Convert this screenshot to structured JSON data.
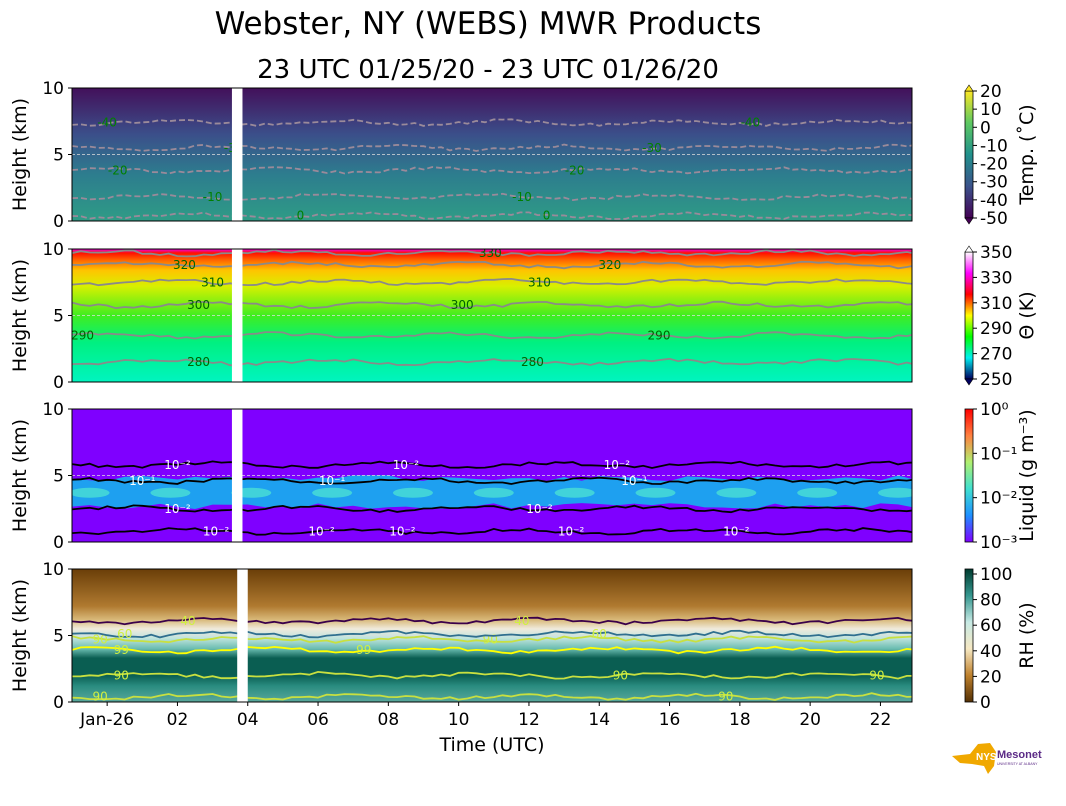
{
  "title": "Webster, NY (WEBS) MWR Products",
  "subtitle": "23 UTC 01/25/20 - 23 UTC 01/26/20",
  "logo_text": "NYS Mesonet",
  "logo_subtext": "UNIVERSITY AT ALBANY",
  "chart_data": {
    "type": "heatmap",
    "xlabel": "Time (UTC)",
    "x_range_hours_utc": [
      "23 UTC 01/25/20",
      "23 UTC 01/26/20"
    ],
    "xticks": [
      "Jan-26",
      "02",
      "04",
      "06",
      "08",
      "10",
      "12",
      "14",
      "16",
      "18",
      "20",
      "22"
    ],
    "xtick_hours": [
      1,
      3,
      5,
      7,
      9,
      11,
      13,
      15,
      17,
      19,
      21,
      23
    ],
    "missing_data_hours": [
      4.55,
      4.85
    ],
    "panels": [
      {
        "name": "temperature",
        "ylabel": "Height (km)",
        "ylim": [
          0,
          10
        ],
        "yticks": [
          "0",
          "5",
          "10"
        ],
        "colorbar_label": "Temp. (˚C)",
        "colorbar_ticks": [
          "20",
          "10",
          "0",
          "-10",
          "-20",
          "-30",
          "-40",
          "-50"
        ],
        "colors": [
          "#440154",
          "#3b528b",
          "#21918c",
          "#5ec962",
          "#fde725"
        ],
        "bg": [
          [
            "0",
            "#2f9c86"
          ],
          [
            "0.35",
            "#2d7d8e"
          ],
          [
            "0.65",
            "#3b4f8a"
          ],
          [
            "1",
            "#43105a"
          ]
        ],
        "contours": [
          {
            "level": "0",
            "height_km": 0.4,
            "style": "dashed",
            "color": "#9a8a9a",
            "labels": [
              6.5,
              13.5
            ]
          },
          {
            "level": "-10",
            "height_km": 1.8,
            "style": "dashed",
            "color": "#9a8a9a",
            "labels": [
              4,
              12.8
            ]
          },
          {
            "level": "-20",
            "height_km": 3.8,
            "style": "dashed",
            "color": "#9a8a9a",
            "labels": [
              1.3,
              14.3
            ]
          },
          {
            "level": "-30",
            "height_km": 5.5,
            "style": "dashed",
            "color": "#9a8a9a",
            "labels": [
              4.6,
              16.5
            ]
          },
          {
            "level": "-40",
            "height_km": 7.4,
            "style": "dashed",
            "color": "#9a8a9a",
            "labels": [
              1,
              19.3
            ]
          }
        ],
        "label_color": "#008000"
      },
      {
        "name": "theta",
        "ylabel": "Height (km)",
        "ylim": [
          0,
          10
        ],
        "yticks": [
          "0",
          "5",
          "10"
        ],
        "colorbar_label": "Θ (K)",
        "colorbar_ticks": [
          "350",
          "330",
          "310",
          "290",
          "270",
          "250"
        ],
        "colors": [
          "#000060",
          "#00f0f0",
          "#00ff00",
          "#ffff00",
          "#ff0000",
          "#ff00ff",
          "#ffffff"
        ],
        "bg": [
          [
            "0",
            "#00f5c0"
          ],
          [
            "0.3",
            "#00f080"
          ],
          [
            "0.5",
            "#40ee20"
          ],
          [
            "0.72",
            "#d8f000"
          ],
          [
            "0.84",
            "#ffc400"
          ],
          [
            "0.92",
            "#ff6000"
          ],
          [
            "0.97",
            "#ff1000"
          ],
          [
            "1",
            "#ee00ee"
          ]
        ],
        "contours": [
          {
            "level": "280",
            "height_km": 1.5,
            "style": "solid",
            "color": "#8a8a8a",
            "labels": [
              3.6,
              13.1
            ]
          },
          {
            "level": "290",
            "height_km": 3.5,
            "style": "solid",
            "color": "#8a8a8a",
            "labels": [
              0.3,
              16.7
            ]
          },
          {
            "level": "300",
            "height_km": 5.8,
            "style": "solid",
            "color": "#8a8a8a",
            "labels": [
              3.6,
              11.1
            ]
          },
          {
            "level": "310",
            "height_km": 7.5,
            "style": "solid",
            "color": "#8a8a8a",
            "labels": [
              4,
              13.3
            ]
          },
          {
            "level": "320",
            "height_km": 8.8,
            "style": "solid",
            "color": "#8a8a8a",
            "labels": [
              3.2,
              15.3
            ]
          },
          {
            "level": "330",
            "height_km": 9.7,
            "style": "solid",
            "color": "#8a8a8a",
            "labels": [
              11.9
            ]
          }
        ],
        "label_color": "#006400"
      },
      {
        "name": "liquid",
        "ylabel": "Height (km)",
        "ylim": [
          0,
          10
        ],
        "yticks": [
          "0",
          "5",
          "10"
        ],
        "colorbar_label": "Liquid (g m⁻³)",
        "colorbar_scale": "log",
        "colorbar_ticks": [
          "10⁰",
          "10⁻¹",
          "10⁻²",
          "10⁻³"
        ],
        "colors": [
          "#7f00ff",
          "#1e90ff",
          "#40e0d0",
          "#b0f070",
          "#ff8040",
          "#ff0000"
        ],
        "bg": [
          [
            "0",
            "#7f00ff"
          ],
          [
            "1",
            "#7f00ff"
          ]
        ],
        "layer_km": [
          2.7,
          4.8
        ],
        "contours": [
          {
            "level": "10⁻²",
            "height_km": 5.8,
            "style": "solid",
            "color": "#000",
            "labels": [
              3,
              9.5,
              15.5
            ]
          },
          {
            "level": "10⁻¹",
            "height_km": 4.6,
            "style": "solid",
            "color": "#000",
            "labels": [
              2,
              7.4,
              16
            ]
          },
          {
            "level": "10⁻²",
            "height_km": 2.5,
            "style": "solid",
            "color": "#000",
            "labels": [
              3,
              13.3
            ]
          },
          {
            "level": "10⁻²",
            "height_km": 0.8,
            "style": "solid",
            "color": "#000",
            "labels": [
              4.1,
              7.1,
              9.4,
              14.2,
              18.9
            ]
          }
        ],
        "label_color": "#ffffff"
      },
      {
        "name": "rh",
        "ylabel": "Height (km)",
        "ylim": [
          0,
          10
        ],
        "yticks": [
          "0",
          "5",
          "10"
        ],
        "colorbar_label": "RH (%)",
        "colorbar_ticks": [
          "100",
          "80",
          "60",
          "40",
          "20",
          "0"
        ],
        "colors": [
          "#543005",
          "#bf812d",
          "#f6e8c3",
          "#c7eae5",
          "#35978f",
          "#003c30"
        ],
        "bg": [
          [
            "0",
            "#5aa89c"
          ],
          [
            "0.12",
            "#2a8c80"
          ],
          [
            "0.2",
            "#0a5e52"
          ],
          [
            "0.33",
            "#0a5e52"
          ],
          [
            "0.4",
            "#6abcb0"
          ],
          [
            "0.48",
            "#c0e4de"
          ],
          [
            "0.55",
            "#f0eadc"
          ],
          [
            "0.62",
            "#d8b878"
          ],
          [
            "0.72",
            "#b07a30"
          ],
          [
            "1",
            "#6a3e08"
          ]
        ],
        "gap_hours": [
          4.7,
          5.0
        ],
        "contours": [
          {
            "level": "90",
            "height_km": 0.4,
            "style": "solid",
            "color": "#c8e040",
            "labels": [
              0.8,
              18.6
            ]
          },
          {
            "level": "90",
            "height_km": 2.0,
            "style": "solid",
            "color": "#c8e040",
            "labels": [
              1.4,
              15.6,
              22.9
            ]
          },
          {
            "level": "99",
            "height_km": 3.9,
            "style": "solid",
            "color": "#ffff00",
            "labels": [
              1.4,
              8.3
            ]
          },
          {
            "level": "90",
            "height_km": 4.7,
            "style": "solid",
            "color": "#c8e040",
            "labels": [
              0.8,
              11.9
            ]
          },
          {
            "level": "60",
            "height_km": 5.1,
            "style": "solid",
            "color": "#2f6f8f",
            "labels": [
              1.5,
              15
            ]
          },
          {
            "level": "40",
            "height_km": 6.1,
            "style": "solid",
            "color": "#3a004a",
            "labels": [
              3.3,
              12.8
            ]
          }
        ],
        "label_color": "#d0f040"
      }
    ]
  }
}
